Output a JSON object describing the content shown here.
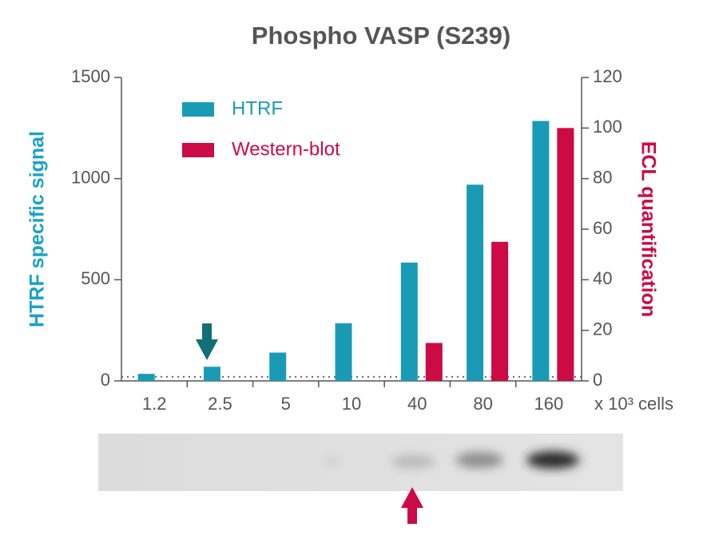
{
  "chart_data": {
    "type": "bar",
    "title": "Phospho VASP (S239)",
    "categories": [
      "1.2",
      "2.5",
      "5",
      "10",
      "40",
      "80",
      "160"
    ],
    "x_label": "x 10³ cells",
    "y_label": "HTRF specific signal",
    "y2_label": "ECL quantification",
    "series": [
      {
        "name": "HTRF",
        "color": "#1a9bb5",
        "values": [
          35,
          70,
          140,
          285,
          585,
          970,
          1285
        ]
      },
      {
        "name": "Western-blot",
        "color": "#cc0a45",
        "axis": "y2",
        "values": [
          null,
          null,
          null,
          null,
          15,
          55,
          100
        ]
      }
    ],
    "ylim": [
      0,
      1500
    ],
    "yticks": [
      0,
      500,
      1000,
      1500
    ],
    "y2lim": [
      0,
      120
    ],
    "y2ticks": [
      0,
      20,
      40,
      60,
      80,
      100,
      120
    ],
    "reference_line": 20,
    "legend": "top-left"
  }
}
